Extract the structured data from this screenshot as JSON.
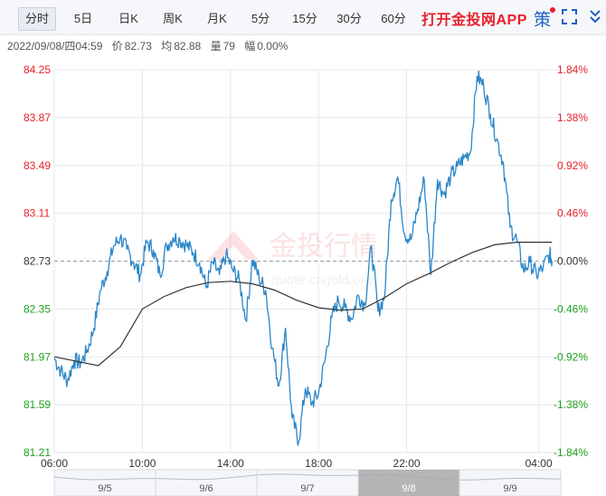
{
  "tabs": [
    {
      "label": "分时",
      "active": true
    },
    {
      "label": "5日"
    },
    {
      "label": "日K"
    },
    {
      "label": "周K"
    },
    {
      "label": "月K"
    },
    {
      "label": "5分"
    },
    {
      "label": "15分"
    },
    {
      "label": "30分"
    },
    {
      "label": "60分"
    }
  ],
  "promo_link": "打开金投网APP",
  "strategy_label": "策",
  "info": {
    "datetime": "2022/09/08/四04:59",
    "price_label": "价",
    "price": "82.73",
    "avg_label": "均",
    "avg": "82.88",
    "volume_label": "量",
    "volume": "79",
    "change_label": "幅",
    "change": "0.00%"
  },
  "watermark": {
    "brand": "金投行情",
    "url": "quote.cngold.org"
  },
  "colors": {
    "price_line": "#2b86c8",
    "avg_line": "#333333",
    "up": "#e8202a",
    "down": "#1e9e1e",
    "grid": "#e6e8ee"
  },
  "chart_data": {
    "type": "line",
    "x_ticks": [
      "06:00",
      "10:00",
      "14:00",
      "18:00",
      "22:00",
      "04:00"
    ],
    "y_ticks_left": [
      "84.25",
      "83.87",
      "83.49",
      "83.11",
      "82.73",
      "82.35",
      "81.97",
      "81.59",
      "81.21"
    ],
    "y_ticks_right": [
      "1.84%",
      "1.38%",
      "0.92%",
      "0.46%",
      "0.00%",
      "-0.46%",
      "-0.92%",
      "-1.38%",
      "-1.84%"
    ],
    "ylim": [
      81.21,
      84.25
    ],
    "reference_price": 82.73,
    "x_range_hours": [
      6,
      29
    ],
    "series": [
      {
        "role": "price",
        "x": [
          6.0,
          6.3,
          6.6,
          6.9,
          7.2,
          7.5,
          7.8,
          8.1,
          8.4,
          8.7,
          9.0,
          9.3,
          9.6,
          9.9,
          10.2,
          10.5,
          10.8,
          11.1,
          11.4,
          11.7,
          12.0,
          12.3,
          12.6,
          12.9,
          13.2,
          13.5,
          13.8,
          14.1,
          14.4,
          14.7,
          15.0,
          15.3,
          15.6,
          15.9,
          16.2,
          16.5,
          16.8,
          17.1,
          17.4,
          17.7,
          18.0,
          18.3,
          18.6,
          18.9,
          19.2,
          19.5,
          19.8,
          20.1,
          20.4,
          20.7,
          21.0,
          21.3,
          21.6,
          21.9,
          22.2,
          22.5,
          22.8,
          23.1,
          23.4,
          23.7,
          24.0,
          24.3,
          24.6,
          24.9,
          25.2,
          25.5,
          25.8,
          26.1,
          26.4,
          26.7,
          27.0,
          27.3,
          27.6,
          27.9,
          28.2,
          28.5,
          28.6
        ],
        "y": [
          81.96,
          81.86,
          81.78,
          81.94,
          81.92,
          82.02,
          82.2,
          82.5,
          82.65,
          82.85,
          82.92,
          82.82,
          82.72,
          82.62,
          82.88,
          82.82,
          82.62,
          82.85,
          82.92,
          82.9,
          82.86,
          82.8,
          82.72,
          82.52,
          82.72,
          82.62,
          82.78,
          82.66,
          82.58,
          82.26,
          82.74,
          82.6,
          82.5,
          82.04,
          81.74,
          82.2,
          81.48,
          81.3,
          81.72,
          81.6,
          81.68,
          81.95,
          82.28,
          82.42,
          82.36,
          82.27,
          82.46,
          82.38,
          82.85,
          82.33,
          82.45,
          83.22,
          83.4,
          82.95,
          82.9,
          83.14,
          83.38,
          82.62,
          83.38,
          83.26,
          83.4,
          83.48,
          83.55,
          83.6,
          84.2,
          84.12,
          83.9,
          83.7,
          83.5,
          83.0,
          82.9,
          82.66,
          82.72,
          82.62,
          82.68,
          82.79,
          82.73
        ]
      },
      {
        "role": "average",
        "x": [
          6.0,
          8.0,
          9.0,
          10.0,
          11.0,
          12.0,
          13.0,
          14.0,
          15.0,
          16.0,
          17.0,
          18.0,
          19.0,
          20.0,
          21.0,
          22.0,
          23.0,
          24.0,
          25.0,
          26.0,
          27.0,
          28.0,
          28.6
        ],
        "y": [
          81.97,
          81.9,
          82.05,
          82.35,
          82.45,
          82.52,
          82.56,
          82.57,
          82.55,
          82.5,
          82.42,
          82.36,
          82.34,
          82.35,
          82.44,
          82.55,
          82.63,
          82.72,
          82.8,
          82.86,
          82.88,
          82.88,
          82.88
        ]
      }
    ],
    "navigator_dates": [
      "9/5",
      "9/6",
      "9/7",
      "9/8",
      "9/9"
    ],
    "navigator_selected": "9/8"
  }
}
